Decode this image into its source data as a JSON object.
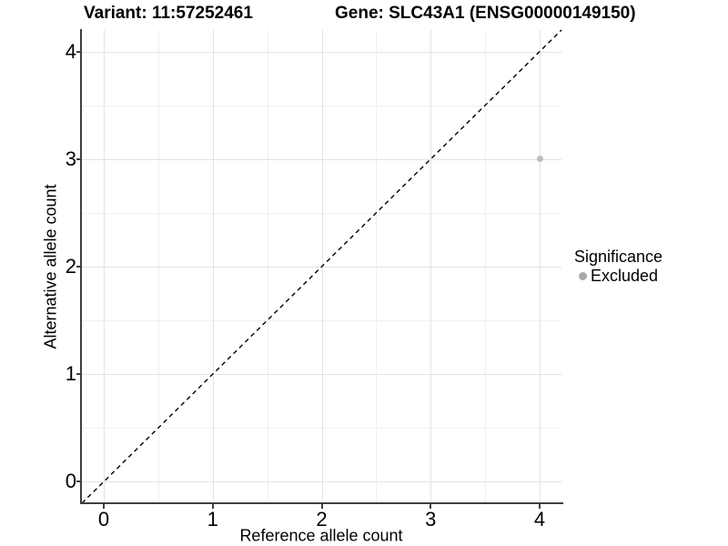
{
  "title": {
    "variant": "Variant: 11:57252461",
    "gene": "Gene: SLC43A1 (ENSG00000149150)"
  },
  "x_axis": {
    "label": "Reference allele count",
    "tick_labels": [
      "0",
      "1",
      "2",
      "3",
      "4"
    ]
  },
  "y_axis": {
    "label": "Alternative allele count",
    "tick_labels": [
      "0",
      "1",
      "2",
      "3",
      "4"
    ]
  },
  "legend": {
    "title": "Significance",
    "items": [
      {
        "label": "Excluded",
        "marker_color": "#a8a8a8"
      }
    ]
  },
  "chart_data": {
    "type": "scatter",
    "title": "Variant: 11:57252461 | Gene: SLC43A1 (ENSG00000149150)",
    "xlabel": "Reference allele count",
    "ylabel": "Alternative allele count",
    "xlim": [
      -0.2,
      4.2
    ],
    "ylim": [
      -0.2,
      4.2
    ],
    "x_major_ticks": [
      0,
      1,
      2,
      3,
      4
    ],
    "y_major_ticks": [
      0,
      1,
      2,
      3,
      4
    ],
    "x_minor_ticks": [
      0.5,
      1.5,
      2.5,
      3.5
    ],
    "y_minor_ticks": [
      0.5,
      1.5,
      2.5,
      3.5
    ],
    "grid": "on",
    "legend_position": "right",
    "series": [
      {
        "name": "Excluded",
        "color": "#bebebe",
        "marker_size_px": 7,
        "points": [
          [
            4,
            3
          ]
        ]
      }
    ],
    "reference_line": {
      "slope": 1,
      "intercept": 0,
      "style": "dashed",
      "color": "#000000"
    }
  },
  "colors": {
    "background": "#ffffff",
    "grid_major": "#e3e3e3",
    "grid_minor": "#f0f0f0",
    "axis_line": "#3f3f3f",
    "tick_mark": "#404040",
    "text": "#000000",
    "point": "#bebebe",
    "legend_marker": "#a8a8a8"
  }
}
